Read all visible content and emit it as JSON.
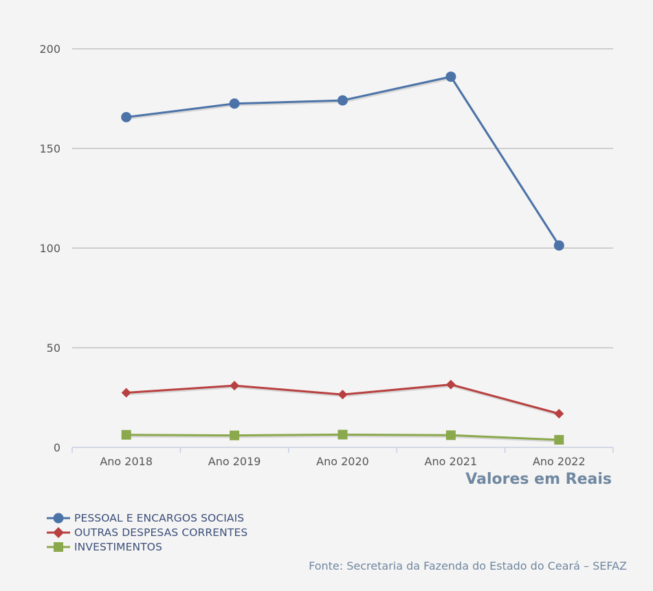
{
  "chart_data": {
    "type": "line",
    "categories": [
      "Ano 2018",
      "Ano 2019",
      "Ano 2020",
      "Ano 2021",
      "Ano 2022"
    ],
    "series": [
      {
        "name": "PESSOAL E ENCARGOS SOCIAIS",
        "values": [
          165.7,
          172.5,
          174.1,
          186.0,
          101.3
        ],
        "color": "#4b73a8",
        "marker": "circle"
      },
      {
        "name": "OUTRAS DESPESAS CORRENTES",
        "values": [
          27.4,
          31.0,
          26.5,
          31.5,
          16.9
        ],
        "color": "#b84040",
        "marker": "diamond"
      },
      {
        "name": "INVESTIMENTOS",
        "values": [
          6.3,
          6.0,
          6.4,
          6.1,
          3.8
        ],
        "color": "#8aa84c",
        "marker": "square"
      }
    ],
    "yticks": [
      0,
      50,
      100,
      150,
      200
    ],
    "ylim": [
      0,
      200
    ],
    "xlabel": "Valores em Reais",
    "ylabel": "",
    "grid": true,
    "legend_position": "bottom-left"
  },
  "source": "Fonte: Secretaria da Fazenda do Estado do Ceará – SEFAZ"
}
